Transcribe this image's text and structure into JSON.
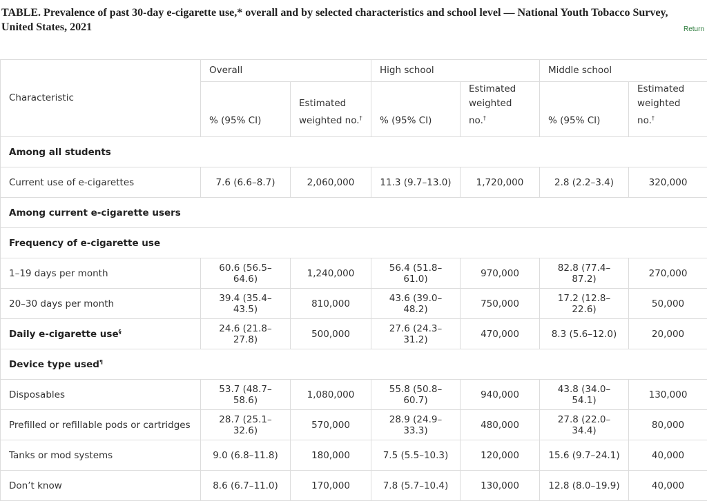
{
  "title": "TABLE. Prevalence of past 30-day e-cigarette use,* overall and by selected characteristics and school level — National Youth Tobacco Survey, United States, 2021",
  "return_link": "Return",
  "table": {
    "characteristic_header": "Characteristic",
    "groups": [
      "Overall",
      "High school",
      "Middle school"
    ],
    "subheaders": [
      {
        "text": "% (95% CI)"
      },
      {
        "text": "Estimated weighted no.",
        "mark": "†"
      },
      {
        "text": "% (95% CI)"
      },
      {
        "text": "Estimated weighted no.",
        "mark": "†"
      },
      {
        "text": "% (95% CI)"
      },
      {
        "text": "Estimated weighted no.",
        "mark": "†"
      }
    ],
    "rows": [
      {
        "label": "Among all students",
        "bold": true
      },
      {
        "label": "Current use of e-cigarettes",
        "cells": [
          "7.6 (6.6–8.7)",
          "2,060,000",
          "11.3 (9.7–13.0)",
          "1,720,000",
          "2.8 (2.2–3.4)",
          "320,000"
        ]
      },
      {
        "label": "Among current e-cigarette users",
        "bold": true
      },
      {
        "label": "Frequency of e-cigarette use",
        "bold": true
      },
      {
        "label": "1–19 days per month",
        "cells": [
          "60.6 (56.5–64.6)",
          "1,240,000",
          "56.4 (51.8–61.0)",
          "970,000",
          "82.8 (77.4–87.2)",
          "270,000"
        ]
      },
      {
        "label": "20–30 days per month",
        "cells": [
          "39.4 (35.4–43.5)",
          "810,000",
          "43.6 (39.0–48.2)",
          "750,000",
          "17.2 (12.8–22.6)",
          "50,000"
        ]
      },
      {
        "label": "Daily e-cigarette use",
        "mark": "§",
        "bold": true,
        "cells": [
          "24.6 (21.8–27.8)",
          "500,000",
          "27.6 (24.3–31.2)",
          "470,000",
          "8.3 (5.6–12.0)",
          "20,000"
        ]
      },
      {
        "label": "Device type used",
        "mark": "¶",
        "bold": true
      },
      {
        "label": "Disposables",
        "cells": [
          "53.7 (48.7–58.6)",
          "1,080,000",
          "55.8 (50.8–60.7)",
          "940,000",
          "43.8 (34.0–54.1)",
          "130,000"
        ]
      },
      {
        "label": "Prefilled or refillable pods or cartridges",
        "cells": [
          "28.7 (25.1–32.6)",
          "570,000",
          "28.9 (24.9–33.3)",
          "480,000",
          "27.8 (22.0–34.4)",
          "80,000"
        ]
      },
      {
        "label": "Tanks or mod systems",
        "cells": [
          "9.0 (6.8–11.8)",
          "180,000",
          "7.5 (5.5–10.3)",
          "120,000",
          "15.6 (9.7–24.1)",
          "40,000"
        ]
      },
      {
        "label": "Don’t know",
        "cells": [
          "8.6 (6.7–11.0)",
          "170,000",
          "7.8 (5.7–10.4)",
          "130,000",
          "12.8 (8.0–19.9)",
          "40,000"
        ]
      }
    ]
  }
}
